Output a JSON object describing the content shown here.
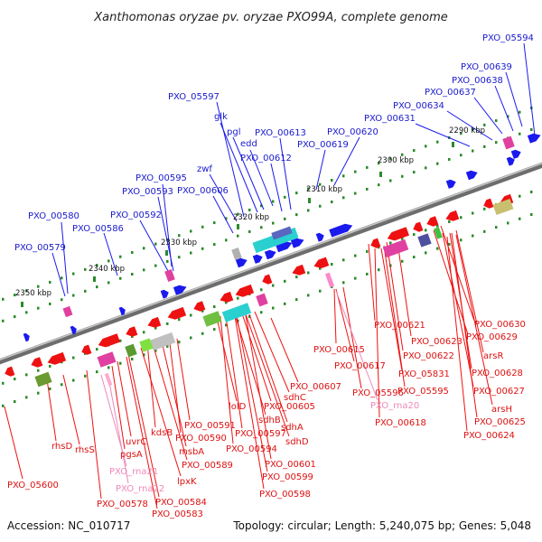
{
  "map": {
    "title": "Xanthomonas oryzae pv. oryzae PXO99A, complete genome",
    "accession": "Accession: NC_010717",
    "summary": "Topology: circular; Length: 5,240,075 bp; Genes: 5,048"
  },
  "colors": {
    "forward_gene": "#1a1aee",
    "reverse_gene": "#ee1111",
    "forward_label": "#1a1acc",
    "reverse_label": "#dd1111",
    "rna_label": "#ee88bb",
    "backbone": "#808080",
    "tick": "#2a8a2a"
  },
  "scale_labels": [
    "2290 kbp",
    "2300 kbp",
    "2310 kbp",
    "2320 kbp",
    "2330 kbp",
    "2340 kbp",
    "2350 kbp"
  ],
  "forward_labels": [
    "PXO_05594",
    "PXO_00639",
    "PXO_00638",
    "PXO_00637",
    "PXO_00634",
    "PXO_00631",
    "PXO_00620",
    "PXO_00619",
    "PXO_00613",
    "PXO_00612",
    "PXO_05597",
    "glk",
    "pgl",
    "edd",
    "zwf",
    "PXO_00606",
    "PXO_00595",
    "PXO_00593",
    "PXO_00592",
    "PXO_00580",
    "PXO_00586",
    "PXO_00579"
  ],
  "reverse_labels": [
    "PXO_00630",
    "PXO_00629",
    "PXO_00621",
    "PXO_00623",
    "arsR",
    "PXO_00622",
    "PXO_00628",
    "PXO_00615",
    "PXO_00617",
    "PXO_05831",
    "PXO_00627",
    "PXO_05596",
    "PXO_05595",
    "arsH",
    "PXO_00607",
    "PXO_00618",
    "PXO_00625",
    "PXO_00624",
    "lolD",
    "PXO_00605",
    "sdhB",
    "sdhC",
    "PXO_00597",
    "PXO_00591",
    "PXO_00590",
    "sdhA",
    "sdhD",
    "PXO_00594",
    "kdsB",
    "PXO_00601",
    "msbA",
    "PXO_00589",
    "PXO_00599",
    "lpxK",
    "PXO_00598",
    "rhsD",
    "rhsS",
    "uvrC",
    "pgsA",
    "PXO_05600",
    "PXO_00584",
    "PXO_00578",
    "PXO_00583"
  ],
  "rna_labels": [
    "PXO_rna20",
    "PXO_rna21",
    "PXO_rna22"
  ]
}
